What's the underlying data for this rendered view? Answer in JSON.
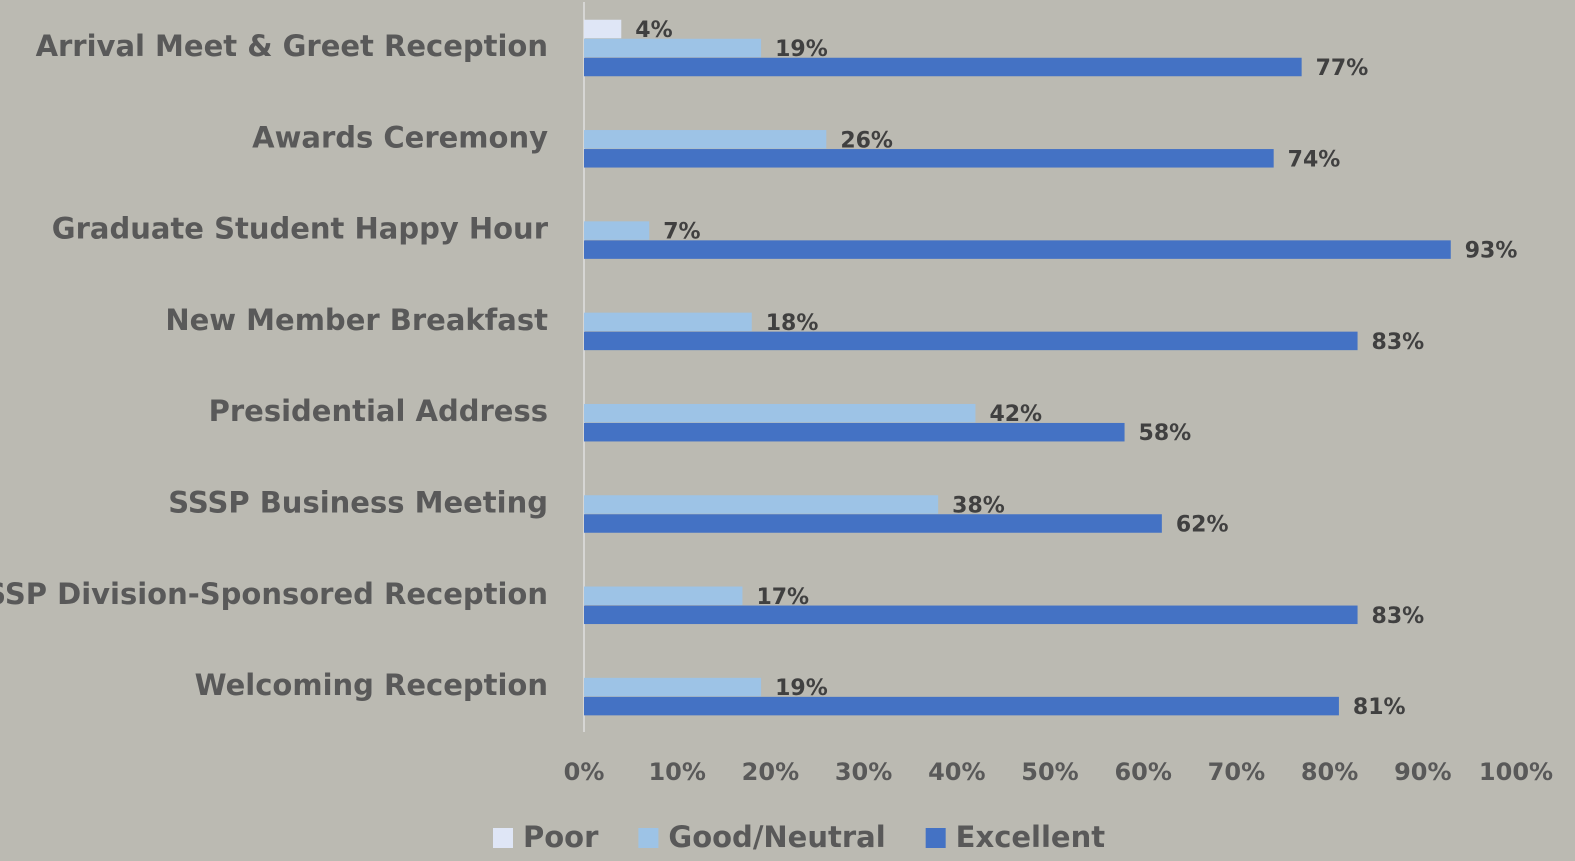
{
  "chart_data": {
    "type": "bar",
    "orientation": "horizontal",
    "categories": [
      "Arrival Meet & Greet Reception",
      "Awards Ceremony",
      "Graduate Student Happy Hour",
      "New Member Breakfast",
      "Presidential Address",
      "SSSP Business Meeting",
      "SSSP Division-Sponsored Reception",
      "Welcoming Reception"
    ],
    "series": [
      {
        "name": "Poor",
        "color": "#dfe6f6",
        "values": [
          4,
          null,
          null,
          null,
          null,
          null,
          null,
          null
        ],
        "value_labels": [
          "4%",
          null,
          null,
          null,
          null,
          null,
          null,
          null
        ]
      },
      {
        "name": "Good/Neutral",
        "color": "#9dc3e6",
        "values": [
          19,
          26,
          7,
          18,
          42,
          38,
          17,
          19
        ],
        "value_labels": [
          "19%",
          "26%",
          "7%",
          "18%",
          "42%",
          "38%",
          "17%",
          "19%"
        ]
      },
      {
        "name": "Excellent",
        "color": "#4472c4",
        "values": [
          77,
          74,
          93,
          83,
          58,
          62,
          83,
          81
        ],
        "value_labels": [
          "77%",
          "74%",
          "93%",
          "83%",
          "58%",
          "62%",
          "83%",
          "81%"
        ]
      }
    ],
    "xlim": [
      0,
      100
    ],
    "xticks": [
      {
        "value": 0,
        "label": "0%"
      },
      {
        "value": 10,
        "label": "10%"
      },
      {
        "value": 20,
        "label": "20%"
      },
      {
        "value": 30,
        "label": "30%"
      },
      {
        "value": 40,
        "label": "40%"
      },
      {
        "value": 50,
        "label": "50%"
      },
      {
        "value": 60,
        "label": "60%"
      },
      {
        "value": 70,
        "label": "70%"
      },
      {
        "value": 80,
        "label": "80%"
      },
      {
        "value": 90,
        "label": "90%"
      },
      {
        "value": 100,
        "label": "100%"
      }
    ],
    "legend": "bottom",
    "grid": false
  }
}
